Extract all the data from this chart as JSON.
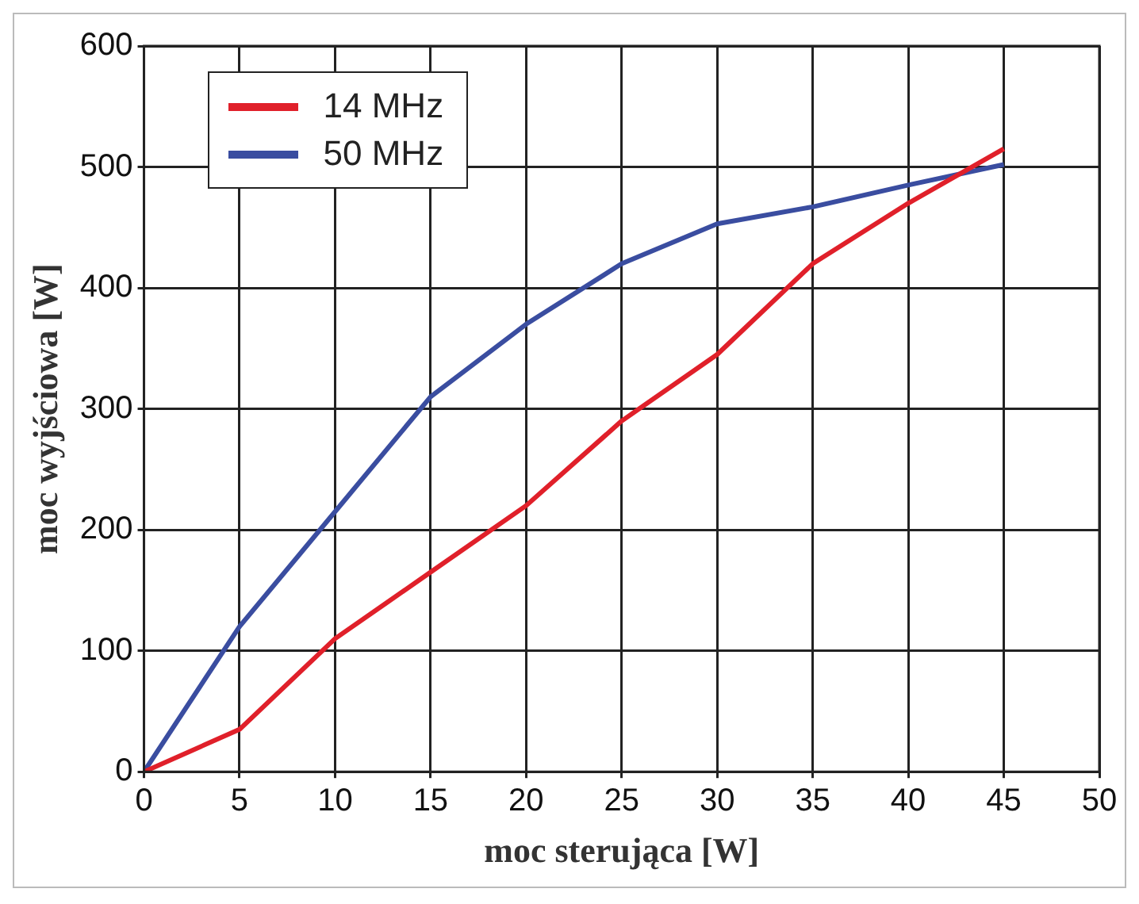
{
  "chart_data": {
    "type": "line",
    "xlabel": "moc sterująca [W]",
    "ylabel": "moc wyjściowa [W]",
    "x": [
      0,
      5,
      10,
      15,
      20,
      25,
      30,
      35,
      40,
      45
    ],
    "series": [
      {
        "name": "14 MHz",
        "color": "#e0202a",
        "values": [
          0,
          35,
          110,
          165,
          220,
          290,
          345,
          420,
          470,
          515
        ]
      },
      {
        "name": "50 MHz",
        "color": "#3a4da0",
        "values": [
          0,
          120,
          215,
          310,
          370,
          420,
          453,
          467,
          485,
          502
        ]
      }
    ],
    "xlim": [
      0,
      50
    ],
    "xticks": [
      0,
      5,
      10,
      15,
      20,
      25,
      30,
      35,
      40,
      45,
      50
    ],
    "ylim": [
      0,
      600
    ],
    "yticks": [
      0,
      100,
      200,
      300,
      400,
      500,
      600
    ],
    "grid": true,
    "legend": "top left",
    "marker": "none",
    "line_style": "solid"
  }
}
